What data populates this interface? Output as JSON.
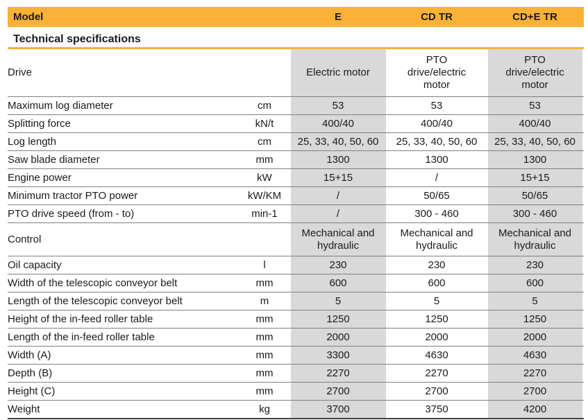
{
  "header": {
    "model_label": "Model",
    "columns": [
      "E",
      "CD TR",
      "CD+E TR"
    ]
  },
  "section_title": "Technical specifications",
  "colors": {
    "accent_orange": "#F9B235",
    "shaded_cell_gray": "#D9D9D9",
    "grid_line_gray": "#7F7F7F",
    "bottom_border": "#3F3F3F"
  },
  "rows": [
    {
      "label": "Drive",
      "unit": "",
      "values": [
        "Electric motor",
        "PTO drive/electric motor",
        "PTO drive/electric motor"
      ]
    },
    {
      "label": "Maximum log diameter",
      "unit": "cm",
      "values": [
        "53",
        "53",
        "53"
      ]
    },
    {
      "label": "Splitting force",
      "unit": "kN/t",
      "values": [
        "400/40",
        "400/40",
        "400/40"
      ]
    },
    {
      "label": "Log length",
      "unit": "cm",
      "values": [
        "25, 33, 40, 50, 60",
        "25, 33, 40, 50, 60",
        "25, 33, 40, 50, 60"
      ]
    },
    {
      "label": "Saw blade diameter",
      "unit": "mm",
      "values": [
        "1300",
        "1300",
        "1300"
      ]
    },
    {
      "label": "Engine power",
      "unit": "kW",
      "values": [
        "15+15",
        "/",
        "15+15"
      ]
    },
    {
      "label": "Minimum tractor PTO power",
      "unit": "kW/KM",
      "values": [
        "/",
        "50/65",
        "50/65"
      ]
    },
    {
      "label": "PTO drive speed (from - to)",
      "unit": "min-1",
      "values": [
        "/",
        "300 - 460",
        "300 - 460"
      ]
    },
    {
      "label": "Control",
      "unit": "",
      "values": [
        "Mechanical and hydraulic",
        "Mechanical and hydraulic",
        "Mechanical and hydraulic"
      ]
    },
    {
      "label": "Oil capacity",
      "unit": "l",
      "values": [
        "230",
        "230",
        "230"
      ]
    },
    {
      "label": "Width of the telescopic conveyor belt",
      "unit": "mm",
      "values": [
        "600",
        "600",
        "600"
      ]
    },
    {
      "label": "Length of the telescopic conveyor belt",
      "unit": "m",
      "values": [
        "5",
        "5",
        "5"
      ]
    },
    {
      "label": "Height of the in-feed roller table",
      "unit": "mm",
      "values": [
        "1250",
        "1250",
        "1250"
      ]
    },
    {
      "label": "Length of the in-feed roller table",
      "unit": "mm",
      "values": [
        "2000",
        "2000",
        "2000"
      ]
    },
    {
      "label": "Width (A)",
      "unit": "mm",
      "values": [
        "3300",
        "4630",
        "4630"
      ]
    },
    {
      "label": "Depth (B)",
      "unit": "mm",
      "values": [
        "2270",
        "2270",
        "2270"
      ]
    },
    {
      "label": "Height (C)",
      "unit": "mm",
      "values": [
        "2700",
        "2700",
        "2700"
      ]
    },
    {
      "label": "Weight",
      "unit": "kg",
      "values": [
        "3700",
        "3750",
        "4200"
      ]
    }
  ]
}
